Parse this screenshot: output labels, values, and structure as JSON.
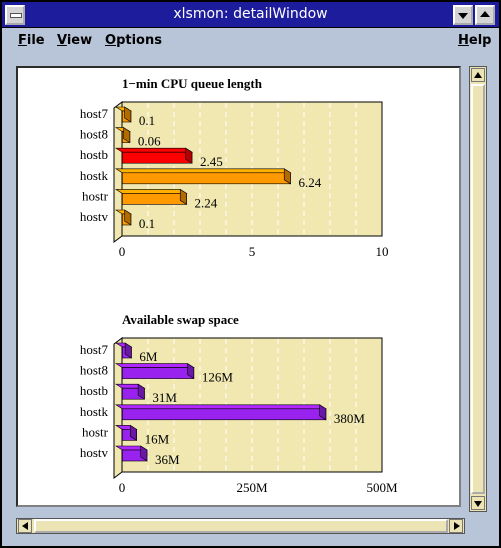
{
  "window": {
    "title": "xlsmon: detailWindow"
  },
  "menubar": {
    "file": {
      "first": "F",
      "rest": "ile"
    },
    "view": {
      "first": "V",
      "rest": "iew"
    },
    "options": {
      "first": "O",
      "rest": "ptions"
    },
    "help": {
      "first": "H",
      "rest": "elp"
    }
  },
  "chart_data": [
    {
      "type": "bar",
      "orientation": "horizontal",
      "title": "1−min CPU queue length",
      "categories": [
        "host7",
        "host8",
        "hostb",
        "hostk",
        "hostr",
        "hostv"
      ],
      "values": [
        0.1,
        0.06,
        2.45,
        6.24,
        2.24,
        0.1
      ],
      "value_labels": [
        "0.1",
        "0.06",
        "2.45",
        "6.24",
        "2.24",
        "0.1"
      ],
      "highlighted_category": "hostb",
      "xlim": [
        0,
        10
      ],
      "xticks": [
        0,
        5,
        10
      ],
      "xtick_labels": [
        "0",
        "5",
        "10"
      ],
      "grid": true,
      "colors": {
        "bar": "#ff9900",
        "highlight": "#ff0000",
        "plot_bg": "#f0e8b0"
      }
    },
    {
      "type": "bar",
      "orientation": "horizontal",
      "title": "Available swap space",
      "categories": [
        "host7",
        "host8",
        "hostb",
        "hostk",
        "hostr",
        "hostv"
      ],
      "values": [
        6,
        126,
        31,
        380,
        16,
        36
      ],
      "value_labels": [
        "6M",
        "126M",
        "31M",
        "380M",
        "16M",
        "36M"
      ],
      "unit": "M",
      "xlim": [
        0,
        500
      ],
      "xticks": [
        0,
        250,
        500
      ],
      "xtick_labels": [
        "0",
        "250M",
        "500M"
      ],
      "grid": true,
      "colors": {
        "bar": "#9922ee",
        "plot_bg": "#f0e8b0"
      }
    }
  ]
}
